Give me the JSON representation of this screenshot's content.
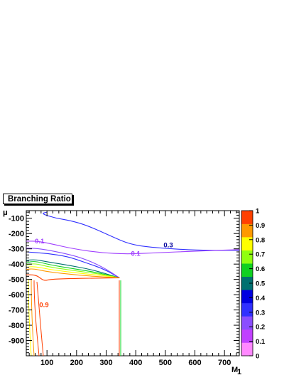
{
  "chart_data": {
    "type": "contour",
    "title": "Branching Ratio",
    "xlabel": "M",
    "xlabel_sub": "1",
    "ylabel": "μ",
    "xlim": [
      30,
      750
    ],
    "ylim": [
      -1000,
      -50
    ],
    "x_ticks": [
      100,
      200,
      300,
      400,
      500,
      600,
      700
    ],
    "y_ticks": [
      -100,
      -200,
      -300,
      -400,
      -500,
      -600,
      -700,
      -800,
      -900
    ],
    "colorbar": {
      "range": [
        0,
        1
      ],
      "ticks": [
        "0",
        "0.1",
        "0.2",
        "0.3",
        "0.4",
        "0.5",
        "0.6",
        "0.7",
        "0.8",
        "0.9",
        "1"
      ],
      "colors": [
        "#ff88ff",
        "#c040ff",
        "#8a4dff",
        "#3030ff",
        "#0000e0",
        "#007070",
        "#10d020",
        "#90ff10",
        "#ffff00",
        "#ff9900",
        "#ff4000"
      ]
    },
    "contours": [
      {
        "level": 0.3,
        "color": "#3030ff",
        "points": [
          [
            100,
            -60
          ],
          [
            80,
            -70
          ],
          [
            130,
            -100
          ],
          [
            180,
            -115
          ],
          [
            240,
            -150
          ],
          [
            320,
            -220
          ],
          [
            380,
            -270
          ],
          [
            450,
            -290
          ],
          [
            560,
            -305
          ],
          [
            650,
            -310
          ],
          [
            750,
            -310
          ]
        ]
      },
      {
        "level": 0.3,
        "color": "#3030ff",
        "points": [
          [
            30,
            -320
          ],
          [
            100,
            -330
          ],
          [
            170,
            -350
          ],
          [
            230,
            -390
          ],
          [
            290,
            -430
          ],
          [
            345,
            -490
          ]
        ]
      },
      {
        "level": 0.1,
        "color": "#a040ff",
        "points": [
          [
            30,
            -250
          ],
          [
            70,
            -250
          ],
          [
            120,
            -270
          ],
          [
            190,
            -300
          ],
          [
            280,
            -325
          ],
          [
            370,
            -335
          ],
          [
            480,
            -325
          ],
          [
            600,
            -315
          ],
          [
            750,
            -305
          ]
        ]
      },
      {
        "level": 0.2,
        "color": "#8a4dff",
        "points": [
          [
            30,
            -295
          ],
          [
            80,
            -300
          ],
          [
            150,
            -325
          ],
          [
            220,
            -360
          ],
          [
            290,
            -420
          ],
          [
            345,
            -490
          ]
        ]
      },
      {
        "level": 0.4,
        "color": "#007070",
        "points": [
          [
            30,
            -375
          ],
          [
            60,
            -370
          ],
          [
            100,
            -385
          ],
          [
            180,
            -410
          ],
          [
            260,
            -440
          ],
          [
            345,
            -490
          ]
        ]
      },
      {
        "level": 0.5,
        "color": "#10d020",
        "points": [
          [
            30,
            -390
          ],
          [
            60,
            -380
          ],
          [
            110,
            -405
          ],
          [
            190,
            -430
          ],
          [
            270,
            -455
          ],
          [
            345,
            -490
          ]
        ]
      },
      {
        "level": 0.6,
        "color": "#90ff10",
        "points": [
          [
            30,
            -405
          ],
          [
            60,
            -395
          ],
          [
            110,
            -420
          ],
          [
            200,
            -445
          ],
          [
            280,
            -465
          ],
          [
            345,
            -490
          ]
        ]
      },
      {
        "level": 0.7,
        "color": "#ffff00",
        "points": [
          [
            30,
            -420
          ],
          [
            55,
            -415
          ],
          [
            110,
            -435
          ],
          [
            210,
            -460
          ],
          [
            290,
            -475
          ],
          [
            345,
            -490
          ]
        ]
      },
      {
        "level": 0.8,
        "color": "#ff9900",
        "points": [
          [
            30,
            -435
          ],
          [
            55,
            -430
          ],
          [
            100,
            -450
          ],
          [
            220,
            -475
          ],
          [
            300,
            -485
          ],
          [
            345,
            -490
          ]
        ]
      },
      {
        "level": 0.9,
        "color": "#ff4000",
        "points": [
          [
            30,
            -470
          ],
          [
            55,
            -470
          ],
          [
            70,
            -480
          ],
          [
            90,
            -510
          ],
          [
            110,
            -500
          ],
          [
            170,
            -495
          ],
          [
            260,
            -492
          ],
          [
            345,
            -490
          ]
        ]
      }
    ],
    "annotations": [
      {
        "text": "0.1",
        "x": 75,
        "y": -265,
        "color": "#a040ff"
      },
      {
        "text": "0.1",
        "x": 400,
        "y": -345,
        "color": "#a040ff"
      },
      {
        "text": "0.3",
        "x": 510,
        "y": -290,
        "color": "#00009a"
      },
      {
        "text": "0.9",
        "x": 90,
        "y": -680,
        "color": "#ff4000"
      }
    ]
  }
}
